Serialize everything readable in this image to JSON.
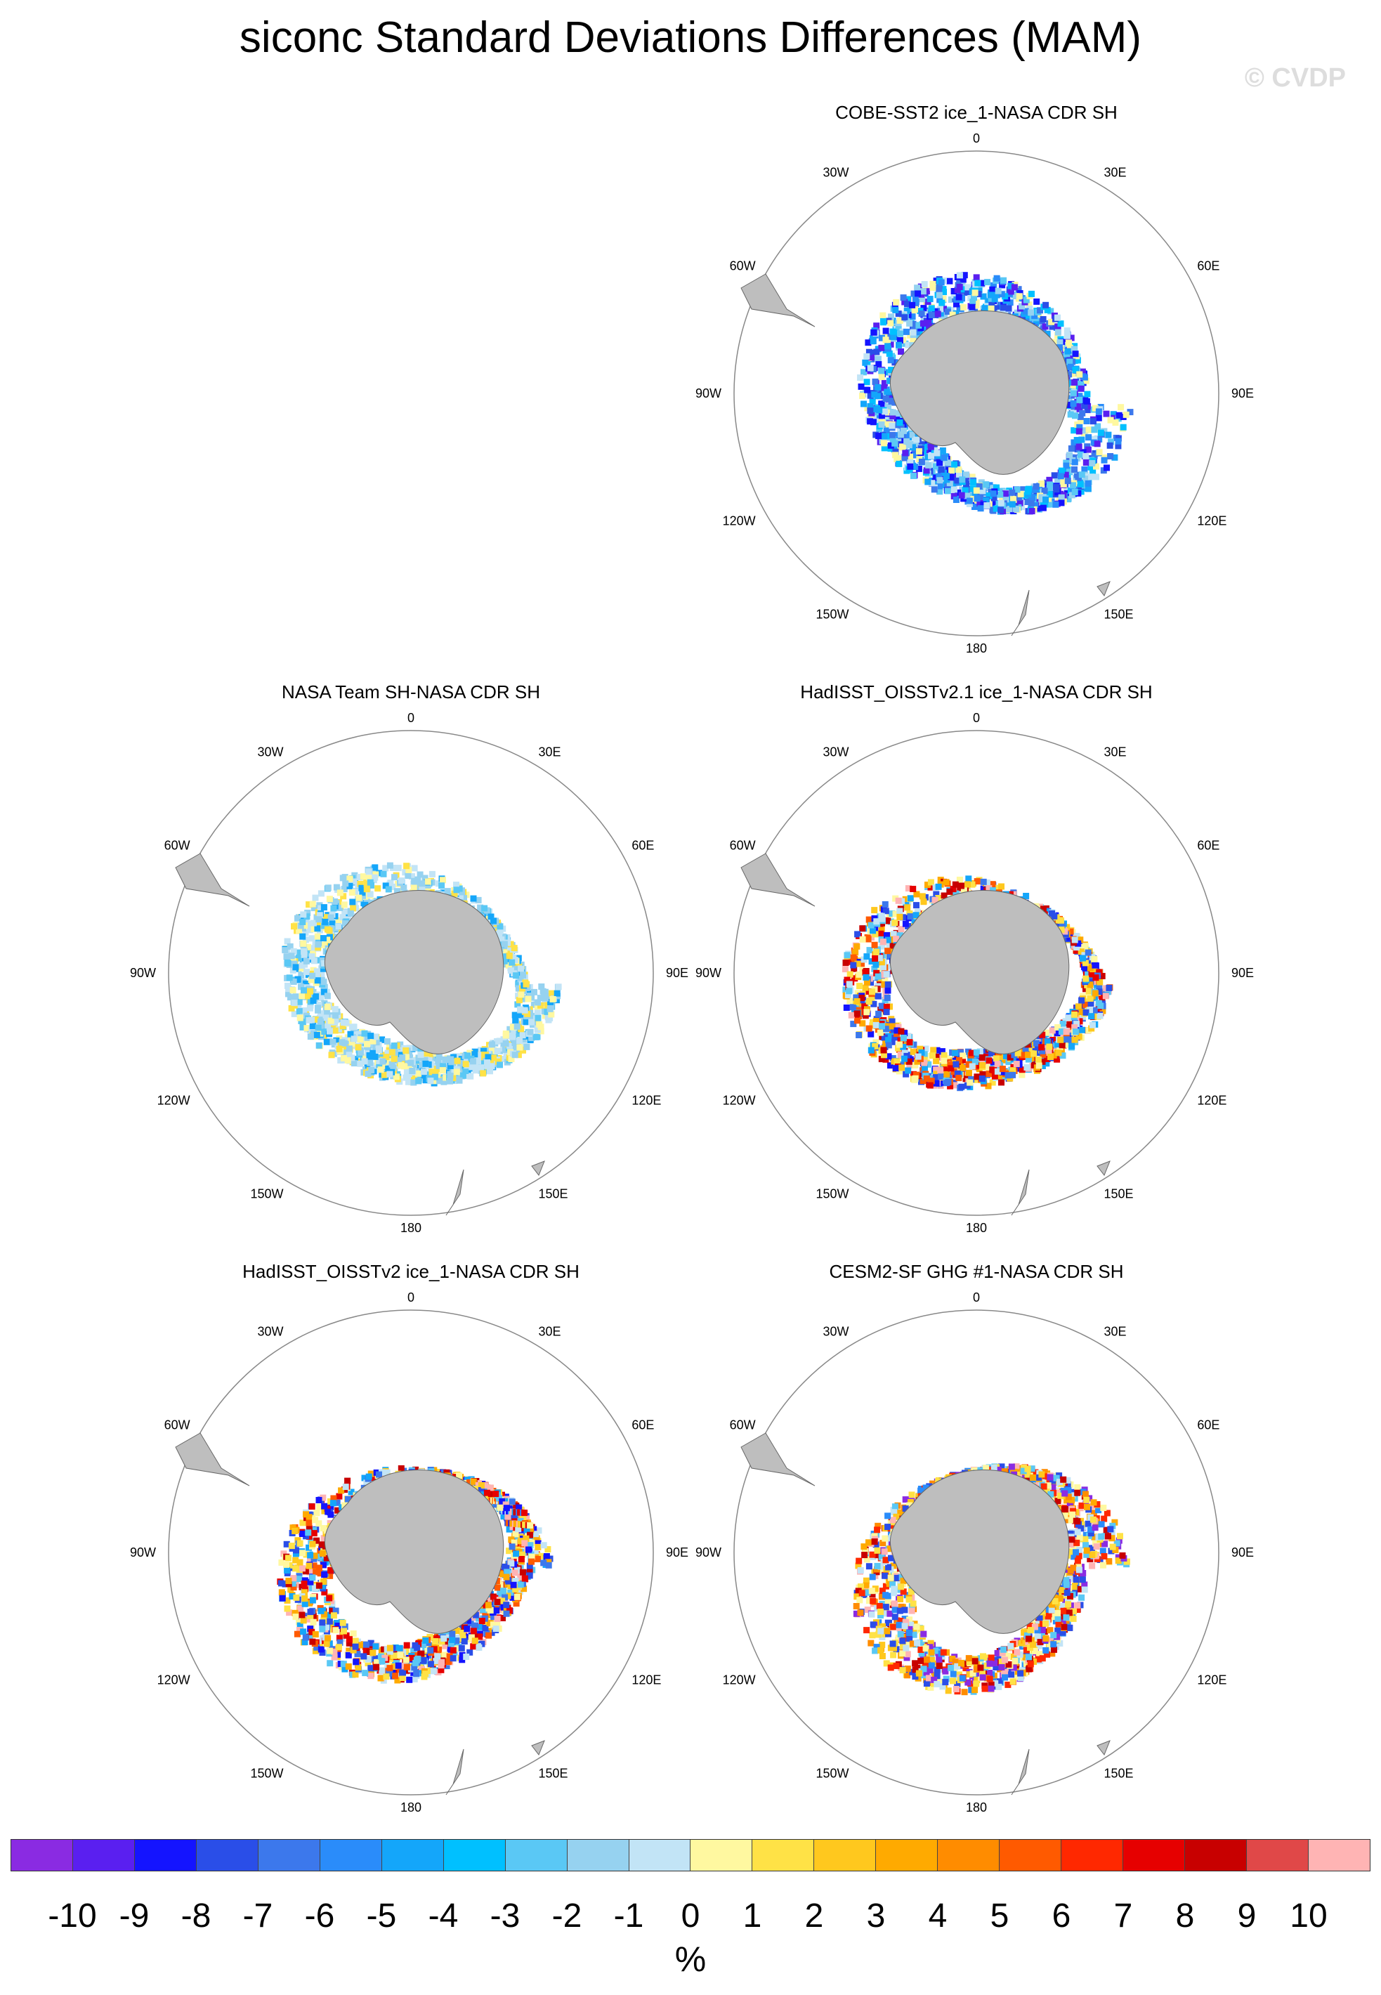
{
  "title": "siconc Standard Deviations Differences (MAM)",
  "watermark": "© CVDP",
  "lon_labels": [
    "0",
    "30E",
    "60E",
    "90E",
    "120E",
    "150E",
    "180",
    "150W",
    "120W",
    "90W",
    "60W",
    "30W"
  ],
  "panels": [
    {
      "id": "cobe",
      "title": "COBE-SST2 ice_1-NASA CDR SH",
      "pattern": "negative"
    },
    {
      "id": "nasateam",
      "title": "NASA Team SH-NASA CDR SH",
      "pattern": "light"
    },
    {
      "id": "hadisst21",
      "title": "HadISST_OISSTv2.1 ice_1-NASA CDR SH",
      "pattern": "mixed"
    },
    {
      "id": "hadisst2",
      "title": "HadISST_OISSTv2 ice_1-NASA CDR SH",
      "pattern": "mixed"
    },
    {
      "id": "cesm2",
      "title": "CESM2-SF GHG #1-NASA CDR SH",
      "pattern": "mixed-strong"
    }
  ],
  "colorbar": {
    "colors": [
      "#8a2be2",
      "#5a1ff0",
      "#1414ff",
      "#2a4ee8",
      "#3c78ec",
      "#2a8cfa",
      "#14a6fa",
      "#00c0ff",
      "#5ac8f5",
      "#96d2f0",
      "#c2e4f6",
      "#fff8a0",
      "#ffe246",
      "#ffc81e",
      "#ffaa00",
      "#ff8c00",
      "#ff5a00",
      "#ff2800",
      "#e60000",
      "#c80000",
      "#e04848",
      "#ffb4b4"
    ],
    "labels": [
      "-10",
      "-9",
      "-8",
      "-7",
      "-6",
      "-5",
      "-4",
      "-3",
      "-2",
      "-1",
      "0",
      "1",
      "2",
      "3",
      "4",
      "5",
      "6",
      "7",
      "8",
      "9",
      "10"
    ],
    "units": "%"
  }
}
